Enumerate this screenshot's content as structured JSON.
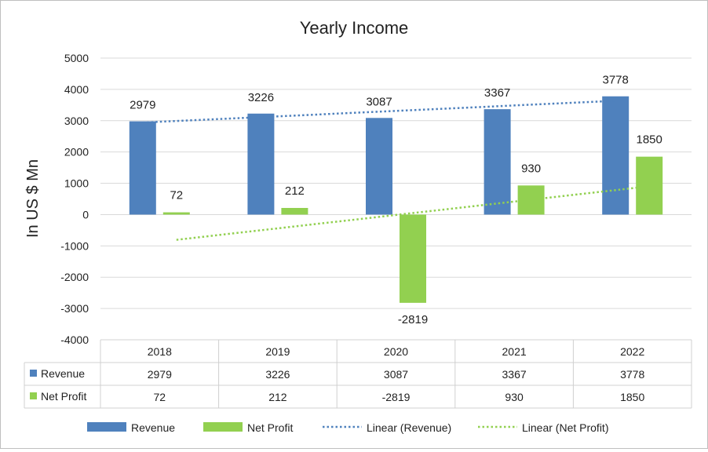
{
  "chart_data": {
    "type": "bar",
    "title": "Yearly Income",
    "ylabel": "In US $ Mn",
    "xlabel": "",
    "ylim": [
      -4000,
      5000
    ],
    "yticks": [
      5000,
      4000,
      3000,
      2000,
      1000,
      0,
      -1000,
      -2000,
      -3000,
      -4000
    ],
    "categories": [
      "2018",
      "2019",
      "2020",
      "2021",
      "2022"
    ],
    "series": [
      {
        "name": "Revenue",
        "values": [
          2979,
          3226,
          3087,
          3367,
          3778
        ],
        "color": "#4f81bd"
      },
      {
        "name": "Net Profit",
        "values": [
          72,
          212,
          -2819,
          930,
          1850
        ],
        "color": "#92d050"
      }
    ],
    "trendlines": [
      {
        "name": "Linear (Revenue)",
        "series": "Revenue",
        "style": "dotted",
        "color": "#4f81bd"
      },
      {
        "name": "Linear (Net Profit)",
        "series": "Net Profit",
        "style": "dotted",
        "color": "#92d050"
      }
    ],
    "grid": true,
    "legend": "bottom",
    "data_table": true
  }
}
